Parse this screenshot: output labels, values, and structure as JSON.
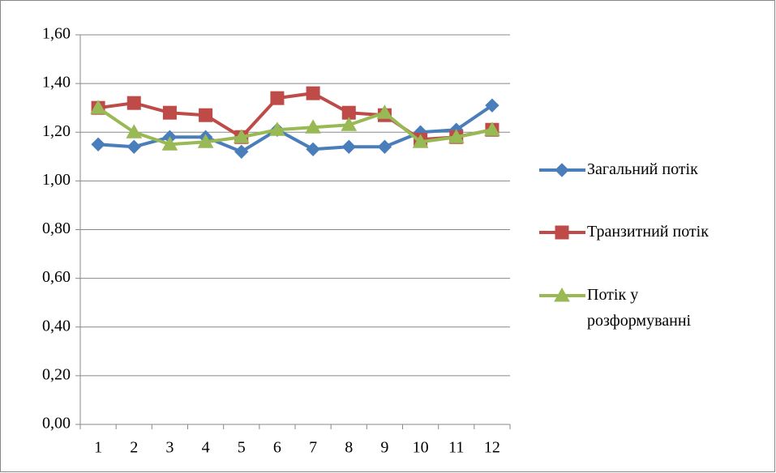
{
  "chart_data": {
    "type": "line",
    "categories": [
      "1",
      "2",
      "3",
      "4",
      "5",
      "6",
      "7",
      "8",
      "9",
      "10",
      "11",
      "12"
    ],
    "series": [
      {
        "name": "Загальний потік",
        "color": "#4a7ebb",
        "marker": "diamond",
        "values": [
          1.15,
          1.14,
          1.18,
          1.18,
          1.12,
          1.21,
          1.13,
          1.14,
          1.14,
          1.2,
          1.21,
          1.31
        ]
      },
      {
        "name": "Транзитний потік",
        "color": "#be4b48",
        "marker": "square",
        "values": [
          1.3,
          1.32,
          1.28,
          1.27,
          1.18,
          1.34,
          1.36,
          1.28,
          1.27,
          1.17,
          1.18,
          1.21
        ]
      },
      {
        "name": "Потік у розформуванні",
        "color": "#98b954",
        "marker": "triangle",
        "values": [
          1.3,
          1.2,
          1.15,
          1.16,
          1.18,
          1.21,
          1.22,
          1.23,
          1.28,
          1.16,
          1.18,
          1.21
        ]
      }
    ],
    "ylim": [
      0,
      1.6
    ],
    "yticks": [
      {
        "value": 0,
        "label": "0,00"
      },
      {
        "value": 0.2,
        "label": "0,20"
      },
      {
        "value": 0.4,
        "label": "0,40"
      },
      {
        "value": 0.6,
        "label": "0,60"
      },
      {
        "value": 0.8,
        "label": "0,80"
      },
      {
        "value": 1.0,
        "label": "1,00"
      },
      {
        "value": 1.2,
        "label": "1,20"
      },
      {
        "value": 1.4,
        "label": "1,40"
      },
      {
        "value": 1.6,
        "label": "1,60"
      }
    ],
    "grid": true,
    "legend": "right"
  }
}
